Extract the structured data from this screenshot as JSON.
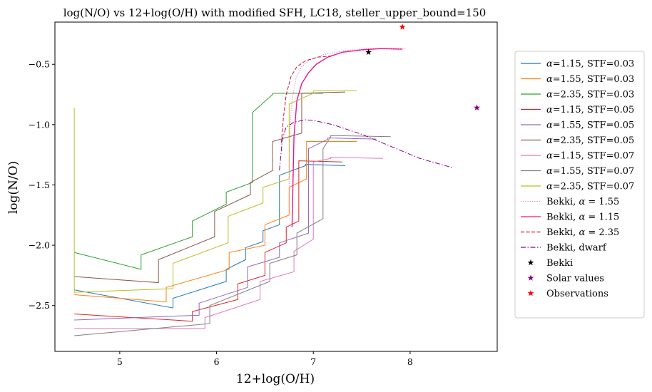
{
  "chart_data": {
    "type": "line",
    "title": "log(N/O) vs 12+log(O/H) with modified SFH, LC18, steller_upper_bound=150",
    "xlabel": "12+log(O/H)",
    "ylabel": "log(N/O)",
    "xlim": [
      4.33,
      8.9
    ],
    "ylim": [
      -2.88,
      -0.15
    ],
    "xticks": [
      5,
      6,
      7,
      8
    ],
    "yticks": [
      -2.5,
      -2.0,
      -1.5,
      -1.0,
      -0.5
    ],
    "xtick_labels": [
      "5",
      "6",
      "7",
      "8"
    ],
    "ytick_labels": [
      "−2.5",
      "−2.0",
      "−1.5",
      "−1.0",
      "−0.5"
    ],
    "grid": false,
    "legend_position": "outside right",
    "series": [
      {
        "name": "α=1.15, STF=0.03",
        "label_parts": [
          "α",
          "=1.15, STF=0.03"
        ],
        "color": "#1f77b4",
        "style": "solid",
        "x": [
          4.53,
          5.55,
          5.55,
          6.1,
          6.1,
          6.3,
          6.3,
          6.48,
          6.48,
          6.65,
          6.65,
          6.92,
          6.92,
          7.33
        ],
        "y": [
          -2.37,
          -2.52,
          -2.44,
          -2.3,
          -2.2,
          -2.12,
          -2.02,
          -1.97,
          -1.88,
          -1.83,
          -1.42,
          -1.34,
          -1.33,
          -1.34
        ]
      },
      {
        "name": "α=1.55, STF=0.03",
        "label_parts": [
          "α",
          "=1.55, STF=0.03"
        ],
        "color": "#ff7f0e",
        "style": "solid",
        "x": [
          4.53,
          5.48,
          5.48,
          6.13,
          6.13,
          6.5,
          6.5,
          6.75,
          6.75,
          6.93,
          6.93,
          7.45
        ],
        "y": [
          -2.41,
          -2.47,
          -2.35,
          -2.2,
          -2.06,
          -2.0,
          -1.83,
          -1.75,
          -1.52,
          -1.45,
          -1.14,
          -1.14
        ]
      },
      {
        "name": "α=2.35, STF=0.03",
        "label_parts": [
          "α",
          "=2.35, STF=0.03"
        ],
        "color": "#2ca02c",
        "style": "solid",
        "x": [
          4.53,
          5.22,
          5.22,
          5.75,
          5.75,
          6.1,
          6.1,
          6.37,
          6.37,
          6.58,
          6.58,
          7.1
        ],
        "y": [
          -2.06,
          -2.2,
          -2.08,
          -1.93,
          -1.8,
          -1.66,
          -1.56,
          -1.48,
          -0.9,
          -0.75,
          -0.74,
          -0.74
        ]
      },
      {
        "name": "α=1.15, STF=0.05",
        "label_parts": [
          "α",
          "=1.15, STF=0.05"
        ],
        "color": "#d62728",
        "style": "solid",
        "x": [
          4.53,
          5.75,
          5.75,
          6.22,
          6.22,
          6.5,
          6.5,
          6.72,
          6.72,
          6.85,
          6.85,
          7.3
        ],
        "y": [
          -2.57,
          -2.63,
          -2.55,
          -2.45,
          -2.32,
          -2.25,
          -2.06,
          -1.98,
          -1.85,
          -1.8,
          -1.3,
          -1.31
        ]
      },
      {
        "name": "α=1.55, STF=0.05",
        "label_parts": [
          "α",
          "=1.55, STF=0.05"
        ],
        "color": "#9467bd",
        "style": "solid",
        "x": [
          4.53,
          5.82,
          5.82,
          6.32,
          6.32,
          6.65,
          6.65,
          6.95,
          6.95,
          7.15,
          7.15,
          7.65
        ],
        "y": [
          -2.62,
          -2.58,
          -2.48,
          -2.35,
          -2.18,
          -2.1,
          -1.98,
          -1.9,
          -1.2,
          -1.12,
          -1.11,
          -1.12
        ]
      },
      {
        "name": "α=2.35, STF=0.05",
        "label_parts": [
          "α",
          "=2.35, STF=0.05"
        ],
        "color": "#8c564b",
        "style": "solid",
        "x": [
          4.53,
          5.4,
          5.4,
          5.98,
          5.98,
          6.35,
          6.35,
          6.58,
          6.58,
          6.88,
          6.88,
          7.33
        ],
        "y": [
          -2.26,
          -2.31,
          -2.12,
          -1.93,
          -1.72,
          -1.58,
          -1.48,
          -1.38,
          -1.14,
          -1.07,
          -0.74,
          -0.73
        ]
      },
      {
        "name": "α=1.15, STF=0.07",
        "label_parts": [
          "α",
          "=1.15, STF=0.07"
        ],
        "color": "#e377c2",
        "style": "solid",
        "x": [
          4.53,
          5.88,
          5.88,
          6.45,
          6.45,
          6.8,
          6.8,
          7.0,
          7.0,
          7.18,
          7.18,
          7.72
        ],
        "y": [
          -2.69,
          -2.69,
          -2.6,
          -2.45,
          -2.3,
          -2.22,
          -2.05,
          -1.95,
          -1.31,
          -1.28,
          -1.27,
          -1.28
        ]
      },
      {
        "name": "α=1.55, STF=0.07",
        "label_parts": [
          "α",
          "=1.55, STF=0.07"
        ],
        "color": "#7f7f7f",
        "style": "solid",
        "x": [
          4.53,
          5.93,
          5.93,
          6.55,
          6.55,
          6.83,
          6.83,
          7.1,
          7.1,
          7.18,
          7.18,
          7.8
        ],
        "y": [
          -2.75,
          -2.65,
          -2.5,
          -2.3,
          -2.15,
          -2.08,
          -1.9,
          -1.78,
          -1.2,
          -1.1,
          -1.09,
          -1.1
        ]
      },
      {
        "name": "α=2.35, STF=0.07",
        "label_parts": [
          "α",
          "=2.35, STF=0.07"
        ],
        "color": "#bcbd22",
        "style": "solid",
        "x": [
          4.53,
          4.53,
          4.53,
          5.55,
          5.55,
          6.12,
          6.12,
          6.48,
          6.48,
          6.75,
          6.75,
          7.0,
          7.0,
          7.45
        ],
        "y": [
          -0.86,
          -2.38,
          -2.39,
          -2.36,
          -2.15,
          -1.98,
          -1.76,
          -1.65,
          -1.52,
          -1.45,
          -0.83,
          -0.74,
          -0.72,
          -0.72
        ]
      },
      {
        "name": "Bekki, α = 1.55",
        "label_parts": [
          "Bekki, ",
          "α",
          " = 1.55"
        ],
        "color": "#e377c2",
        "style": "dotted",
        "x": [
          6.75,
          6.75,
          6.76,
          6.78,
          6.82,
          6.88,
          6.95,
          7.1,
          7.3,
          7.55,
          7.8,
          7.95
        ],
        "y": [
          -1.7,
          -1.3,
          -1.0,
          -0.8,
          -0.62,
          -0.52,
          -0.47,
          -0.42,
          -0.39,
          -0.37,
          -0.365,
          -0.37
        ]
      },
      {
        "name": "Bekki, α = 1.15",
        "label_parts": [
          "Bekki, ",
          "α",
          " = 1.15"
        ],
        "color": "#f0148c",
        "style": "solid",
        "x": [
          6.78,
          6.8,
          6.83,
          6.88,
          6.95,
          7.03,
          7.15,
          7.3,
          7.5,
          7.7,
          7.92
        ],
        "y": [
          -1.85,
          -1.1,
          -0.8,
          -0.66,
          -0.57,
          -0.5,
          -0.44,
          -0.4,
          -0.38,
          -0.37,
          -0.375
        ]
      },
      {
        "name": "Bekki, α = 2.35",
        "label_parts": [
          "Bekki, ",
          "α",
          " = 2.35"
        ],
        "color": "#c8102e",
        "style": "dashed",
        "x": [
          6.67,
          6.69,
          6.72,
          6.77,
          6.83,
          6.92,
          7.05,
          7.2
        ],
        "y": [
          -1.15,
          -0.95,
          -0.75,
          -0.6,
          -0.52,
          -0.47,
          -0.44,
          -0.43
        ]
      },
      {
        "name": "Bekki, dwarf",
        "label_parts": [
          "Bekki, dwarf"
        ],
        "color": "#8b008b",
        "style": "dashdot",
        "x": [
          6.65,
          6.68,
          6.72,
          6.8,
          6.92,
          7.0,
          7.2,
          7.5,
          7.8,
          8.1,
          8.45
        ],
        "y": [
          -1.38,
          -1.12,
          -1.02,
          -0.98,
          -0.96,
          -0.965,
          -1.0,
          -1.08,
          -1.18,
          -1.28,
          -1.36
        ]
      }
    ],
    "markers": [
      {
        "name": "Bekki",
        "color": "#000000",
        "marker": "star",
        "x": 7.57,
        "y": -0.4
      },
      {
        "name": "Solar values",
        "color": "#800080",
        "marker": "star",
        "x": 8.69,
        "y": -0.86
      },
      {
        "name": "Observations",
        "color": "#ff0000",
        "marker": "star",
        "x": 7.92,
        "y": -0.19
      }
    ]
  }
}
